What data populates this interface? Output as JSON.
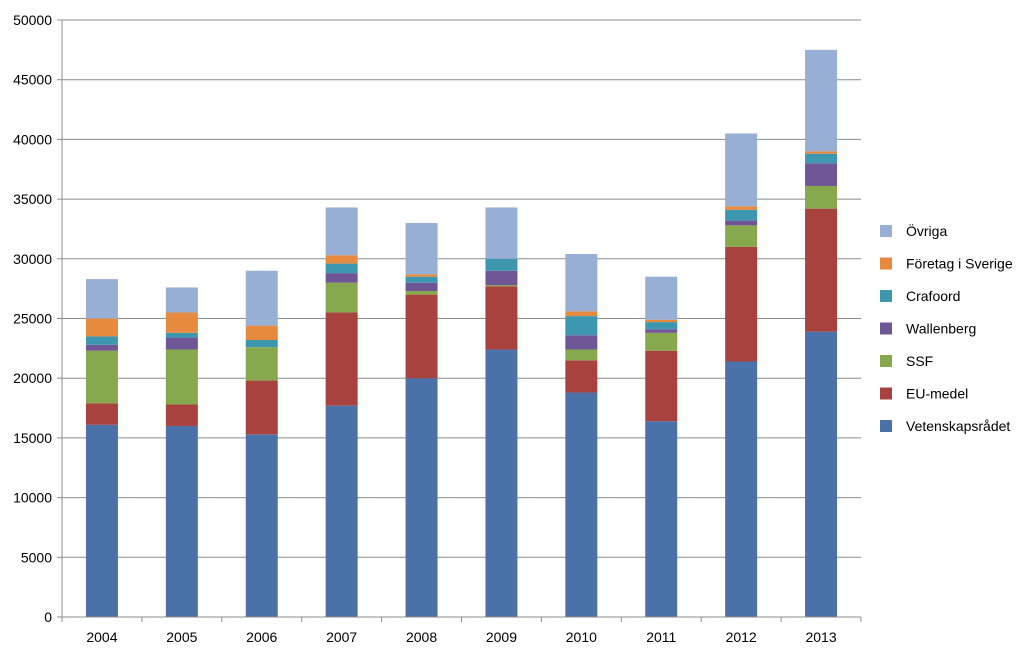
{
  "chart_data": {
    "type": "bar",
    "stacked": true,
    "title": "",
    "xlabel": "",
    "ylabel": "",
    "ylim": [
      0,
      50000
    ],
    "yticks": [
      0,
      5000,
      10000,
      15000,
      20000,
      25000,
      30000,
      35000,
      40000,
      45000,
      50000
    ],
    "grid": true,
    "legend_position": "right",
    "categories": [
      "2004",
      "2005",
      "2006",
      "2007",
      "2008",
      "2009",
      "2010",
      "2011",
      "2012",
      "2013"
    ],
    "series": [
      {
        "name": "Vetenskapsrådet",
        "color": "#4a72a8",
        "values": [
          16100,
          16000,
          15300,
          17700,
          20000,
          22400,
          18800,
          16400,
          21400,
          23900
        ]
      },
      {
        "name": "EU-medel",
        "color": "#a8423e",
        "values": [
          1800,
          1800,
          4500,
          7800,
          7000,
          5300,
          2700,
          5900,
          9600,
          10300
        ]
      },
      {
        "name": "SSF",
        "color": "#87a84c",
        "values": [
          4400,
          4600,
          2800,
          2500,
          300,
          100,
          900,
          1500,
          1800,
          1900
        ]
      },
      {
        "name": "Wallenberg",
        "color": "#6f5796",
        "values": [
          500,
          1000,
          0,
          800,
          700,
          1200,
          1200,
          300,
          400,
          1900
        ]
      },
      {
        "name": "Crafoord",
        "color": "#3d97ae",
        "values": [
          700,
          400,
          600,
          800,
          500,
          1000,
          1600,
          600,
          900,
          800
        ]
      },
      {
        "name": "Företag i Sverige",
        "color": "#e58a3e",
        "values": [
          1500,
          1700,
          1200,
          700,
          200,
          0,
          400,
          200,
          300,
          200
        ]
      },
      {
        "name": "Övriga",
        "color": "#97aed5",
        "values": [
          3300,
          2100,
          4600,
          4000,
          4300,
          4300,
          4800,
          3600,
          6100,
          8500
        ]
      }
    ]
  }
}
